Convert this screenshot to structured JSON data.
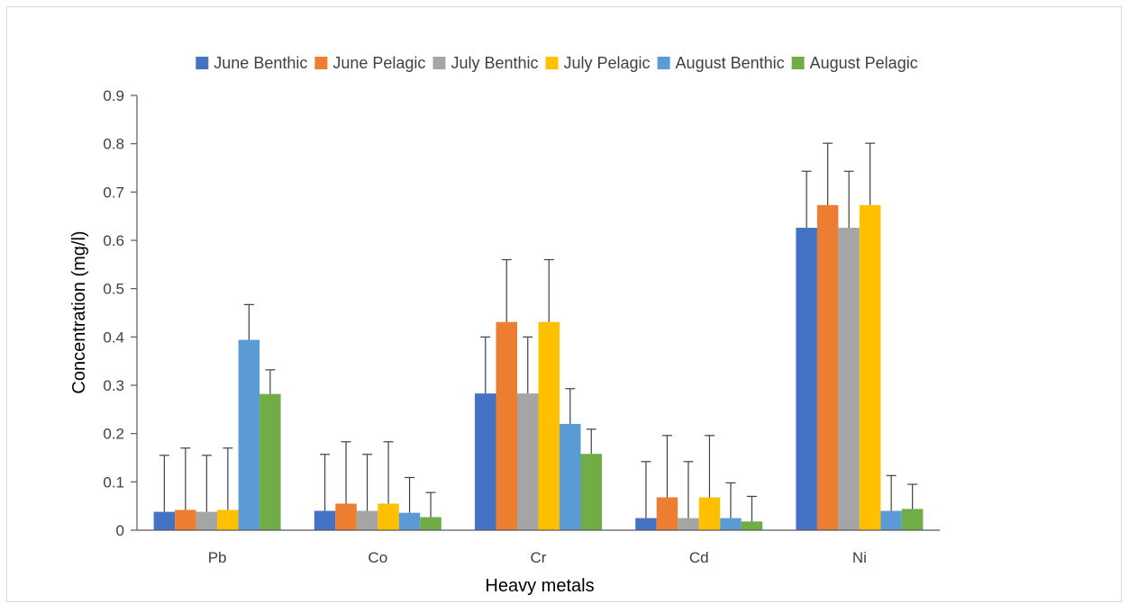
{
  "chart_data": {
    "type": "bar",
    "title": "",
    "xlabel": "Heavy metals",
    "ylabel": "Concentration (mg/l)",
    "ylim": [
      0,
      0.9
    ],
    "yticks": [
      "0",
      "0.1",
      "0.2",
      "0.3",
      "0.4",
      "0.5",
      "0.6",
      "0.7",
      "0.8",
      "0.9"
    ],
    "grid": false,
    "legend_position": "top",
    "categories": [
      "Pb",
      "Co",
      "Cr",
      "Cd",
      "Ni"
    ],
    "series": [
      {
        "name": "June Benthic",
        "color": "#4472C4",
        "values": [
          0.038,
          0.04,
          0.283,
          0.025,
          0.626
        ],
        "error": [
          0.117,
          0.117,
          0.117,
          0.117,
          0.117
        ]
      },
      {
        "name": "June Pelagic",
        "color": "#ED7D31",
        "values": [
          0.042,
          0.055,
          0.431,
          0.068,
          0.673
        ],
        "error": [
          0.128,
          0.128,
          0.129,
          0.128,
          0.128
        ]
      },
      {
        "name": "July Benthic",
        "color": "#A5A5A5",
        "values": [
          0.038,
          0.04,
          0.283,
          0.025,
          0.626
        ],
        "error": [
          0.117,
          0.117,
          0.117,
          0.117,
          0.117
        ]
      },
      {
        "name": "July Pelagic",
        "color": "#FFC000",
        "values": [
          0.042,
          0.055,
          0.431,
          0.068,
          0.673
        ],
        "error": [
          0.128,
          0.128,
          0.129,
          0.128,
          0.128
        ]
      },
      {
        "name": "August Benthic",
        "color": "#5B9BD5",
        "values": [
          0.394,
          0.036,
          0.22,
          0.025,
          0.04
        ],
        "error": [
          0.073,
          0.073,
          0.073,
          0.073,
          0.073
        ]
      },
      {
        "name": "August Pelagic",
        "color": "#70AD47",
        "values": [
          0.282,
          0.027,
          0.158,
          0.018,
          0.044
        ],
        "error": [
          0.05,
          0.051,
          0.051,
          0.052,
          0.051
        ]
      }
    ]
  }
}
